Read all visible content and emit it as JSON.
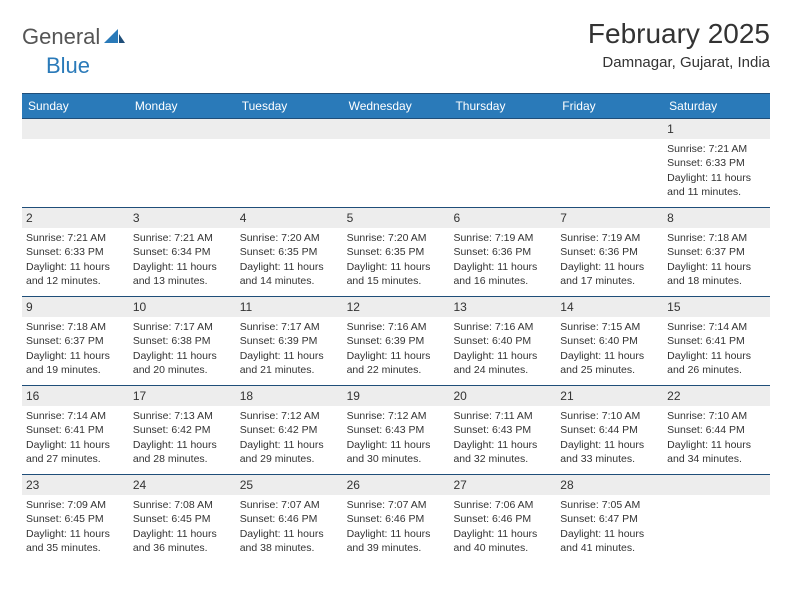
{
  "logo": {
    "part1": "General",
    "part2": "Blue"
  },
  "title": "February 2025",
  "location": "Damnagar, Gujarat, India",
  "colors": {
    "header_bg": "#2a7ab9",
    "header_border": "#1f4e79",
    "daynum_bg": "#ededed",
    "text": "#333333"
  },
  "days_of_week": [
    "Sunday",
    "Monday",
    "Tuesday",
    "Wednesday",
    "Thursday",
    "Friday",
    "Saturday"
  ],
  "weeks": [
    [
      {
        "n": "",
        "empty": true
      },
      {
        "n": "",
        "empty": true
      },
      {
        "n": "",
        "empty": true
      },
      {
        "n": "",
        "empty": true
      },
      {
        "n": "",
        "empty": true
      },
      {
        "n": "",
        "empty": true
      },
      {
        "n": "1",
        "sunrise": "Sunrise: 7:21 AM",
        "sunset": "Sunset: 6:33 PM",
        "daylight": "Daylight: 11 hours and 11 minutes."
      }
    ],
    [
      {
        "n": "2",
        "sunrise": "Sunrise: 7:21 AM",
        "sunset": "Sunset: 6:33 PM",
        "daylight": "Daylight: 11 hours and 12 minutes."
      },
      {
        "n": "3",
        "sunrise": "Sunrise: 7:21 AM",
        "sunset": "Sunset: 6:34 PM",
        "daylight": "Daylight: 11 hours and 13 minutes."
      },
      {
        "n": "4",
        "sunrise": "Sunrise: 7:20 AM",
        "sunset": "Sunset: 6:35 PM",
        "daylight": "Daylight: 11 hours and 14 minutes."
      },
      {
        "n": "5",
        "sunrise": "Sunrise: 7:20 AM",
        "sunset": "Sunset: 6:35 PM",
        "daylight": "Daylight: 11 hours and 15 minutes."
      },
      {
        "n": "6",
        "sunrise": "Sunrise: 7:19 AM",
        "sunset": "Sunset: 6:36 PM",
        "daylight": "Daylight: 11 hours and 16 minutes."
      },
      {
        "n": "7",
        "sunrise": "Sunrise: 7:19 AM",
        "sunset": "Sunset: 6:36 PM",
        "daylight": "Daylight: 11 hours and 17 minutes."
      },
      {
        "n": "8",
        "sunrise": "Sunrise: 7:18 AM",
        "sunset": "Sunset: 6:37 PM",
        "daylight": "Daylight: 11 hours and 18 minutes."
      }
    ],
    [
      {
        "n": "9",
        "sunrise": "Sunrise: 7:18 AM",
        "sunset": "Sunset: 6:37 PM",
        "daylight": "Daylight: 11 hours and 19 minutes."
      },
      {
        "n": "10",
        "sunrise": "Sunrise: 7:17 AM",
        "sunset": "Sunset: 6:38 PM",
        "daylight": "Daylight: 11 hours and 20 minutes."
      },
      {
        "n": "11",
        "sunrise": "Sunrise: 7:17 AM",
        "sunset": "Sunset: 6:39 PM",
        "daylight": "Daylight: 11 hours and 21 minutes."
      },
      {
        "n": "12",
        "sunrise": "Sunrise: 7:16 AM",
        "sunset": "Sunset: 6:39 PM",
        "daylight": "Daylight: 11 hours and 22 minutes."
      },
      {
        "n": "13",
        "sunrise": "Sunrise: 7:16 AM",
        "sunset": "Sunset: 6:40 PM",
        "daylight": "Daylight: 11 hours and 24 minutes."
      },
      {
        "n": "14",
        "sunrise": "Sunrise: 7:15 AM",
        "sunset": "Sunset: 6:40 PM",
        "daylight": "Daylight: 11 hours and 25 minutes."
      },
      {
        "n": "15",
        "sunrise": "Sunrise: 7:14 AM",
        "sunset": "Sunset: 6:41 PM",
        "daylight": "Daylight: 11 hours and 26 minutes."
      }
    ],
    [
      {
        "n": "16",
        "sunrise": "Sunrise: 7:14 AM",
        "sunset": "Sunset: 6:41 PM",
        "daylight": "Daylight: 11 hours and 27 minutes."
      },
      {
        "n": "17",
        "sunrise": "Sunrise: 7:13 AM",
        "sunset": "Sunset: 6:42 PM",
        "daylight": "Daylight: 11 hours and 28 minutes."
      },
      {
        "n": "18",
        "sunrise": "Sunrise: 7:12 AM",
        "sunset": "Sunset: 6:42 PM",
        "daylight": "Daylight: 11 hours and 29 minutes."
      },
      {
        "n": "19",
        "sunrise": "Sunrise: 7:12 AM",
        "sunset": "Sunset: 6:43 PM",
        "daylight": "Daylight: 11 hours and 30 minutes."
      },
      {
        "n": "20",
        "sunrise": "Sunrise: 7:11 AM",
        "sunset": "Sunset: 6:43 PM",
        "daylight": "Daylight: 11 hours and 32 minutes."
      },
      {
        "n": "21",
        "sunrise": "Sunrise: 7:10 AM",
        "sunset": "Sunset: 6:44 PM",
        "daylight": "Daylight: 11 hours and 33 minutes."
      },
      {
        "n": "22",
        "sunrise": "Sunrise: 7:10 AM",
        "sunset": "Sunset: 6:44 PM",
        "daylight": "Daylight: 11 hours and 34 minutes."
      }
    ],
    [
      {
        "n": "23",
        "sunrise": "Sunrise: 7:09 AM",
        "sunset": "Sunset: 6:45 PM",
        "daylight": "Daylight: 11 hours and 35 minutes."
      },
      {
        "n": "24",
        "sunrise": "Sunrise: 7:08 AM",
        "sunset": "Sunset: 6:45 PM",
        "daylight": "Daylight: 11 hours and 36 minutes."
      },
      {
        "n": "25",
        "sunrise": "Sunrise: 7:07 AM",
        "sunset": "Sunset: 6:46 PM",
        "daylight": "Daylight: 11 hours and 38 minutes."
      },
      {
        "n": "26",
        "sunrise": "Sunrise: 7:07 AM",
        "sunset": "Sunset: 6:46 PM",
        "daylight": "Daylight: 11 hours and 39 minutes."
      },
      {
        "n": "27",
        "sunrise": "Sunrise: 7:06 AM",
        "sunset": "Sunset: 6:46 PM",
        "daylight": "Daylight: 11 hours and 40 minutes."
      },
      {
        "n": "28",
        "sunrise": "Sunrise: 7:05 AM",
        "sunset": "Sunset: 6:47 PM",
        "daylight": "Daylight: 11 hours and 41 minutes."
      },
      {
        "n": "",
        "empty": true
      }
    ]
  ]
}
